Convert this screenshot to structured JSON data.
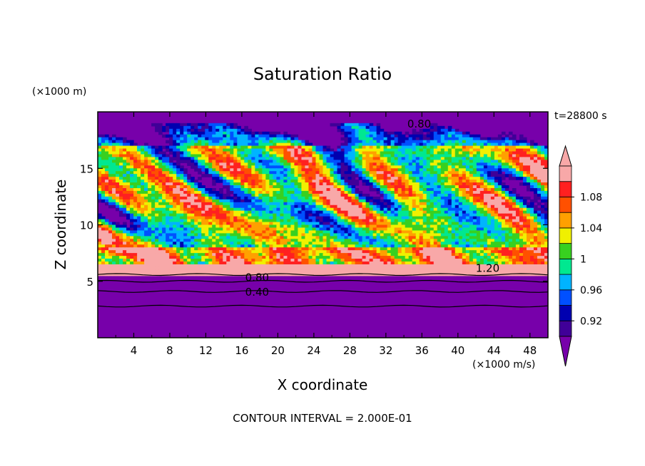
{
  "chart_data": {
    "type": "heatmap",
    "title": "Saturation Ratio",
    "xlabel": "X coordinate",
    "ylabel": "Z coordinate",
    "x_unit": "(×1000 m/s)",
    "y_unit": "(×1000 m)",
    "time_label": "t=28800 s",
    "footer": "CONTOUR INTERVAL = 2.000E-01",
    "xlim": [
      0,
      50
    ],
    "ylim": [
      0,
      20
    ],
    "x_ticks": [
      4,
      8,
      12,
      16,
      20,
      24,
      28,
      32,
      36,
      40,
      44,
      48
    ],
    "y_ticks": [
      5,
      10,
      15
    ],
    "contour_labels": [
      {
        "text": "0.80",
        "x": 35.7,
        "y": 19.0
      },
      {
        "text": "0.80",
        "x": 17.7,
        "y": 5.4
      },
      {
        "text": "0.40",
        "x": 17.7,
        "y": 4.1
      },
      {
        "text": "1.20",
        "x": 43.3,
        "y": 6.2
      }
    ],
    "colorbar": {
      "labels": [
        "1.08",
        "1.04",
        "1",
        "0.96",
        "0.92"
      ],
      "levels": [
        0.9,
        0.92,
        0.94,
        0.96,
        0.98,
        1.0,
        1.02,
        1.04,
        1.06,
        1.08,
        1.1
      ],
      "colors": [
        "#400098",
        "#0000b0",
        "#0050ff",
        "#00b4ff",
        "#00e890",
        "#38d020",
        "#f0f000",
        "#ffa000",
        "#ff5000",
        "#ff2020",
        "#f8a8a8"
      ],
      "under_color": "#7700aa",
      "over_color": "#f8a8a8"
    },
    "background_color": "#7700aa"
  }
}
